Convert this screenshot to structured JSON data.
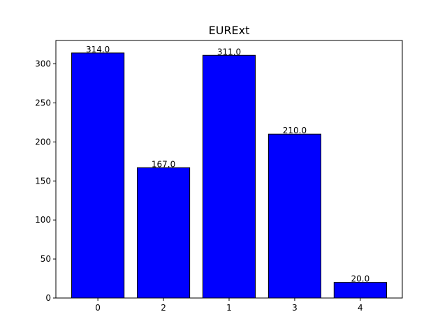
{
  "chart_data": {
    "type": "bar",
    "title": "EURExt",
    "xlabel": "",
    "ylabel": "",
    "categories": [
      "0",
      "2",
      "1",
      "3",
      "4"
    ],
    "values": [
      314.0,
      167.0,
      311.0,
      210.0,
      20.0
    ],
    "value_labels": [
      "314.0",
      "167.0",
      "311.0",
      "210.0",
      "20.0"
    ],
    "ylim": [
      0,
      330
    ],
    "yticks": [
      0,
      50,
      100,
      150,
      200,
      250,
      300
    ],
    "ytick_labels": [
      "0",
      "50",
      "100",
      "150",
      "200",
      "250",
      "300"
    ],
    "bar_color": "#0000ff",
    "edge_color": "#000000",
    "grid": false,
    "legend": "none"
  }
}
